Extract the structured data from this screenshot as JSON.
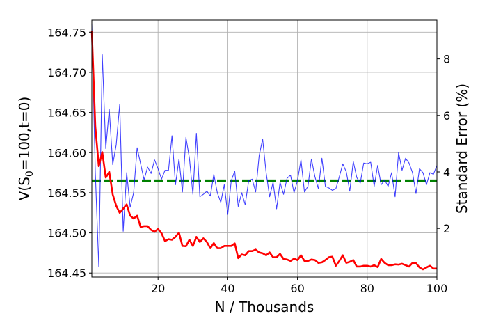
{
  "chart_data": {
    "type": "line",
    "xlabel": "N / Thousands",
    "ylabel_left_prefix": "V(S",
    "ylabel_left_subscript": "0",
    "ylabel_left_suffix": "=100,t=0)",
    "ylabel_right": "Standard Error (%)",
    "xlim": [
      1,
      100
    ],
    "ylim_left": [
      164.445,
      164.765
    ],
    "ylim_right": [
      0.28,
      9.37
    ],
    "x_ticks": [
      20,
      40,
      60,
      80,
      100
    ],
    "x_tick_labels": [
      "20",
      "40",
      "60",
      "80",
      "100"
    ],
    "y_left_ticks": [
      164.45,
      164.5,
      164.55,
      164.6,
      164.65,
      164.7,
      164.75
    ],
    "y_left_tick_labels": [
      "164.45",
      "164.50",
      "164.55",
      "164.60",
      "164.65",
      "164.70",
      "164.75"
    ],
    "y_right_ticks": [
      2,
      4,
      6,
      8
    ],
    "y_right_tick_labels": [
      "2",
      "4",
      "6",
      "8"
    ],
    "grid": true,
    "reference_line": {
      "axis": "left",
      "y": 164.565,
      "color": "#008000",
      "style": "dashed"
    },
    "series": [
      {
        "axis": "left",
        "color": "#0000ff",
        "x": [
          1,
          2,
          3,
          4,
          5,
          6,
          7,
          8,
          9,
          10,
          11,
          12,
          13,
          14,
          15,
          16,
          17,
          18,
          19,
          20,
          21,
          22,
          23,
          24,
          25,
          26,
          27,
          28,
          29,
          30,
          31,
          32,
          33,
          34,
          35,
          36,
          37,
          38,
          39,
          40,
          41,
          42,
          43,
          44,
          45,
          46,
          47,
          48,
          49,
          50,
          51,
          52,
          53,
          54,
          55,
          56,
          57,
          58,
          59,
          60,
          61,
          62,
          63,
          64,
          65,
          66,
          67,
          68,
          69,
          70,
          71,
          72,
          73,
          74,
          75,
          76,
          77,
          78,
          79,
          80,
          81,
          82,
          83,
          84,
          85,
          86,
          87,
          88,
          89,
          90,
          91,
          92,
          93,
          94,
          95,
          96,
          97,
          98,
          99,
          100
        ],
        "y": [
          164.76,
          164.575,
          164.458,
          164.722,
          164.605,
          164.654,
          164.585,
          164.61,
          164.66,
          164.502,
          164.575,
          164.532,
          164.55,
          164.606,
          164.586,
          164.566,
          164.582,
          164.574,
          164.591,
          164.58,
          164.567,
          164.578,
          164.578,
          164.621,
          164.56,
          164.592,
          164.551,
          164.619,
          164.593,
          164.548,
          164.624,
          164.545,
          164.548,
          164.552,
          164.546,
          164.573,
          164.55,
          164.538,
          164.56,
          164.523,
          164.565,
          164.577,
          164.533,
          164.55,
          164.535,
          164.565,
          164.567,
          164.551,
          164.596,
          164.617,
          164.575,
          164.545,
          164.563,
          164.53,
          164.563,
          164.548,
          164.568,
          164.572,
          164.55,
          164.565,
          164.591,
          164.551,
          164.558,
          164.592,
          164.57,
          164.555,
          164.593,
          164.558,
          164.556,
          164.553,
          164.555,
          164.57,
          164.586,
          164.576,
          164.552,
          164.589,
          164.569,
          164.562,
          164.587,
          164.586,
          164.588,
          164.558,
          164.584,
          164.56,
          164.566,
          164.558,
          164.575,
          164.545,
          164.6,
          164.578,
          164.593,
          164.587,
          164.575,
          164.549,
          164.58,
          164.575,
          164.56,
          164.575,
          164.573,
          164.584
        ]
      },
      {
        "axis": "right",
        "color": "#ff0000",
        "x": [
          1,
          2,
          3,
          4,
          5,
          6,
          7,
          8,
          9,
          10,
          11,
          12,
          13,
          14,
          15,
          16,
          17,
          18,
          19,
          20,
          21,
          22,
          23,
          24,
          25,
          26,
          27,
          28,
          29,
          30,
          31,
          32,
          33,
          34,
          35,
          36,
          37,
          38,
          39,
          40,
          41,
          42,
          43,
          44,
          45,
          46,
          47,
          48,
          49,
          50,
          51,
          52,
          53,
          54,
          55,
          56,
          57,
          58,
          59,
          60,
          61,
          62,
          63,
          64,
          65,
          66,
          67,
          68,
          69,
          70,
          71,
          72,
          73,
          74,
          75,
          76,
          77,
          78,
          79,
          80,
          81,
          82,
          83,
          84,
          85,
          86,
          87,
          88,
          89,
          90,
          91,
          92,
          93,
          94,
          95,
          96,
          97,
          98,
          99,
          100
        ],
        "y": [
          9.0,
          5.6,
          4.2,
          4.7,
          3.8,
          4.0,
          3.2,
          2.8,
          2.55,
          2.7,
          2.85,
          2.45,
          2.35,
          2.45,
          2.05,
          2.08,
          2.08,
          1.95,
          1.88,
          1.98,
          1.83,
          1.55,
          1.62,
          1.6,
          1.7,
          1.85,
          1.38,
          1.37,
          1.6,
          1.38,
          1.7,
          1.52,
          1.65,
          1.52,
          1.3,
          1.48,
          1.3,
          1.3,
          1.38,
          1.38,
          1.38,
          1.47,
          0.95,
          1.08,
          1.05,
          1.2,
          1.2,
          1.25,
          1.15,
          1.12,
          1.05,
          1.15,
          0.98,
          0.98,
          1.1,
          0.92,
          0.9,
          0.85,
          0.93,
          0.88,
          1.05,
          0.85,
          0.85,
          0.9,
          0.88,
          0.78,
          0.8,
          0.88,
          0.98,
          1.0,
          0.68,
          0.85,
          1.05,
          0.78,
          0.82,
          0.88,
          0.65,
          0.65,
          0.68,
          0.68,
          0.65,
          0.7,
          0.63,
          0.92,
          0.78,
          0.7,
          0.7,
          0.73,
          0.72,
          0.75,
          0.7,
          0.65,
          0.78,
          0.77,
          0.62,
          0.55,
          0.62,
          0.68,
          0.58,
          0.58
        ]
      }
    ]
  }
}
